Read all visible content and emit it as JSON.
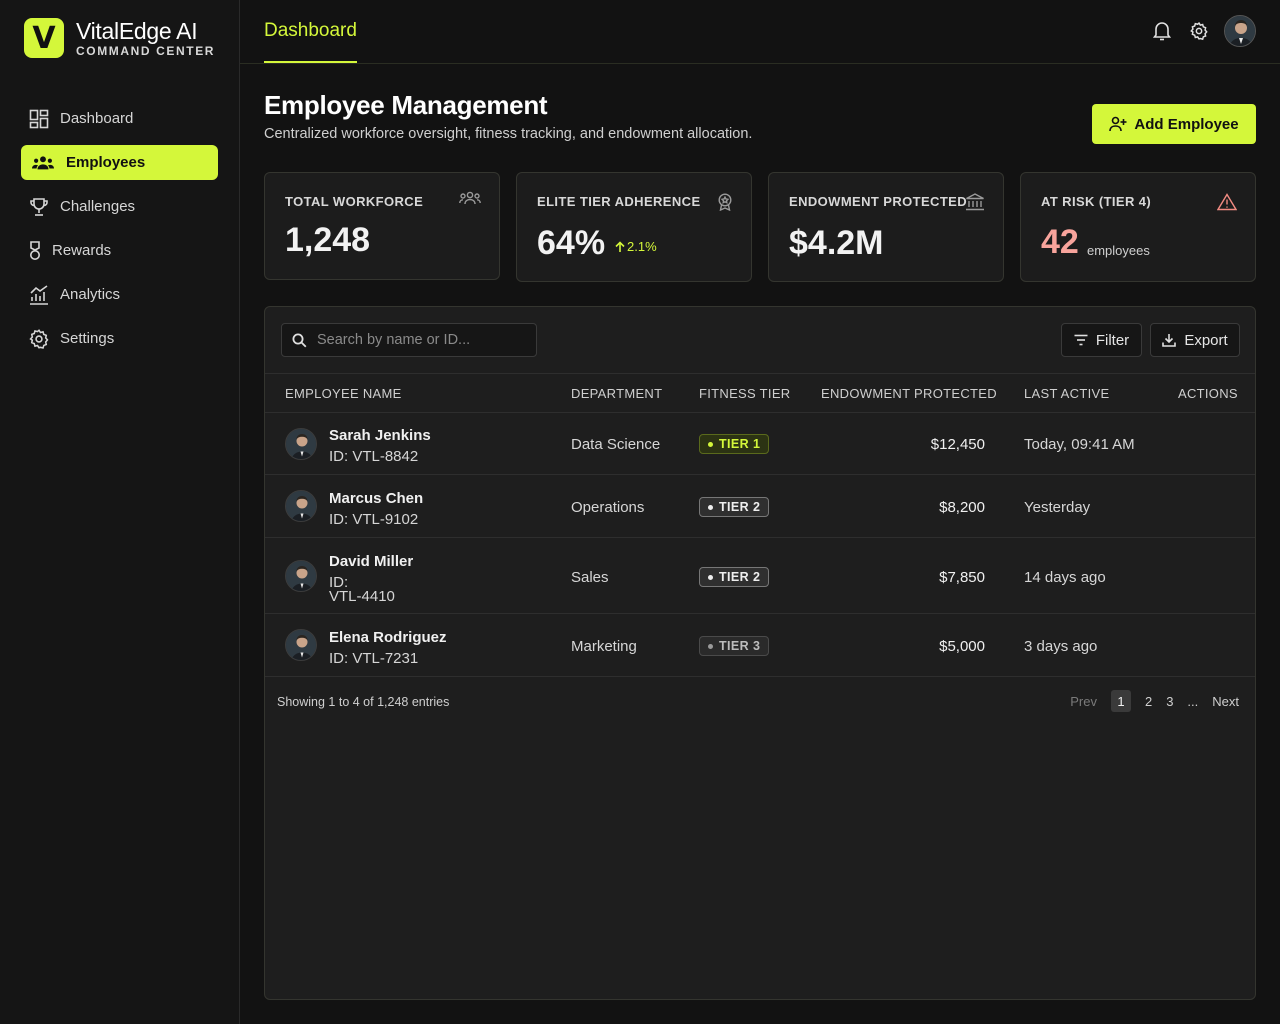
{
  "brand": {
    "logo_letter": "V",
    "name": "VitalEdge AI",
    "subtitle": "COMMAND CENTER",
    "accent": "#d4f73a"
  },
  "sidebar": {
    "items": [
      {
        "label": "Dashboard",
        "icon": "dashboard-icon",
        "active": false
      },
      {
        "label": "Employees",
        "icon": "users-icon",
        "active": true
      },
      {
        "label": "Challenges",
        "icon": "trophy-icon",
        "active": false
      },
      {
        "label": "Rewards",
        "icon": "medal-icon",
        "active": false
      },
      {
        "label": "Analytics",
        "icon": "analytics-icon",
        "active": false
      },
      {
        "label": "Settings",
        "icon": "gear-icon",
        "active": false
      }
    ]
  },
  "header": {
    "tab": "Dashboard",
    "icons": [
      "bell-icon",
      "gear-icon",
      "avatar"
    ]
  },
  "page": {
    "title": "Employee Management",
    "subtitle": "Centralized workforce oversight, fitness tracking, and endowment allocation.",
    "add_button": "Add Employee"
  },
  "stats": [
    {
      "label": "TOTAL WORKFORCE",
      "value": "1,248",
      "icon": "team-icon"
    },
    {
      "label": "ELITE TIER ADHERENCE",
      "value": "64%",
      "delta": "2.1%",
      "icon": "badge-icon"
    },
    {
      "label": "ENDOWMENT PROTECTED",
      "value": "$4.2M",
      "icon": "bank-icon"
    },
    {
      "label": "AT RISK (TIER 4)",
      "value": "42",
      "unit": "employees",
      "icon": "warning-icon",
      "value_color": "#f8a49c"
    }
  ],
  "table": {
    "search_placeholder": "Search by name or ID...",
    "filter_label": "Filter",
    "export_label": "Export",
    "columns": [
      "EMPLOYEE NAME",
      "DEPARTMENT",
      "FITNESS TIER",
      "ENDOWMENT PROTECTED",
      "LAST ACTIVE",
      "ACTIONS"
    ],
    "rows": [
      {
        "name": "Sarah Jenkins",
        "id": "ID: VTL-8842",
        "department": "Data Science",
        "tier": "TIER 1",
        "endowment": "$12,450",
        "last_active": "Today, 09:41 AM"
      },
      {
        "name": "Marcus Chen",
        "id": "ID: VTL-9102",
        "department": "Operations",
        "tier": "TIER 2",
        "endowment": "$8,200",
        "last_active": "Yesterday"
      },
      {
        "name": "David Miller",
        "id_prefix": "ID:",
        "id_code": "VTL-4410",
        "department": "Sales",
        "tier": "TIER 2",
        "endowment": "$7,850",
        "last_active": "14 days ago"
      },
      {
        "name": "Elena Rodriguez",
        "id": "ID: VTL-7231",
        "department": "Marketing",
        "tier": "TIER 3",
        "endowment": "$5,000",
        "last_active": "3 days ago"
      }
    ],
    "footer": "Showing 1 to 4 of 1,248 entries",
    "pager": {
      "prev": "Prev",
      "pages": [
        "1",
        "2",
        "3"
      ],
      "ellipsis": "...",
      "next": "Next",
      "current": "1"
    }
  }
}
